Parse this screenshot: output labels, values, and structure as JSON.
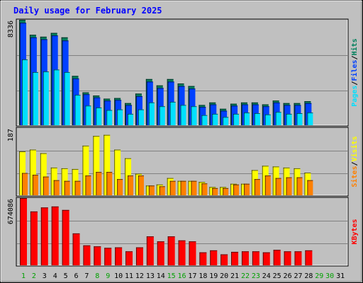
{
  "title": "Daily usage for February 2025",
  "colors": {
    "background": "#C0C0C0",
    "plot_background": "#C0C0C0",
    "title": "#0000FF",
    "hits": "#00805C",
    "files": "#0040FF",
    "pages": "#00E0FF",
    "visits": "#FFFF00",
    "sites": "#FF8000",
    "kbytes": "#FF0000",
    "day_weekday": "#008040",
    "day_weekend": "#00A000"
  },
  "chart_data": [
    {
      "type": "bar",
      "panel": "hits-files-pages",
      "ymax_label": "8336",
      "ylim": [
        0,
        8336
      ],
      "legend": [
        "Pages",
        "Files",
        "Hits"
      ],
      "series": [
        {
          "name": "Hits",
          "values": [
            8336,
            7150,
            7000,
            7300,
            6950,
            3900,
            2600,
            2350,
            2100,
            2150,
            1750,
            2500,
            3650,
            3150,
            3650,
            3300,
            3100,
            1600,
            1800,
            1300,
            1700,
            1800,
            1800,
            1650,
            1950,
            1750,
            1750,
            1900
          ]
        },
        {
          "name": "Files",
          "values": [
            8100,
            6950,
            6800,
            7100,
            6700,
            3700,
            2450,
            2200,
            1950,
            2000,
            1600,
            2300,
            3450,
            2950,
            3450,
            3100,
            2900,
            1450,
            1650,
            1150,
            1550,
            1650,
            1650,
            1500,
            1800,
            1600,
            1600,
            1750
          ]
        },
        {
          "name": "Pages",
          "values": [
            5200,
            4200,
            4250,
            4400,
            4200,
            2400,
            1550,
            1400,
            1200,
            1250,
            900,
            1250,
            1800,
            1500,
            1850,
            1600,
            1500,
            800,
            900,
            650,
            900,
            1000,
            950,
            850,
            1050,
            900,
            950,
            1000
          ]
        }
      ]
    },
    {
      "type": "bar",
      "panel": "visits-sites",
      "ymax_label": "187",
      "ylim": [
        0,
        187
      ],
      "legend": [
        "Sites",
        "Visits"
      ],
      "series": [
        {
          "name": "Visits",
          "values": [
            122,
            127,
            117,
            77,
            75,
            73,
            138,
            165,
            168,
            127,
            103,
            60,
            27,
            30,
            48,
            40,
            40,
            37,
            23,
            23,
            32,
            32,
            70,
            82,
            80,
            77,
            75,
            63
          ]
        },
        {
          "name": "Sites",
          "values": [
            62,
            57,
            52,
            42,
            40,
            40,
            55,
            65,
            65,
            45,
            55,
            55,
            27,
            25,
            40,
            40,
            40,
            33,
            20,
            20,
            30,
            32,
            45,
            55,
            48,
            50,
            50,
            42
          ]
        }
      ]
    },
    {
      "type": "bar",
      "panel": "kbytes",
      "ymax_label": "674086",
      "ylim": [
        0,
        674086
      ],
      "legend": [
        "KBytes"
      ],
      "series": [
        {
          "name": "KBytes",
          "values": [
            674086,
            540000,
            580000,
            590000,
            555000,
            320000,
            200000,
            190000,
            175000,
            180000,
            140000,
            180000,
            290000,
            240000,
            290000,
            250000,
            240000,
            130000,
            150000,
            110000,
            135000,
            140000,
            140000,
            130000,
            155000,
            140000,
            140000,
            150000
          ]
        }
      ]
    }
  ],
  "days": [
    "1",
    "2",
    "3",
    "4",
    "5",
    "6",
    "7",
    "8",
    "9",
    "10",
    "11",
    "12",
    "13",
    "14",
    "15",
    "16",
    "17",
    "18",
    "19",
    "20",
    "21",
    "22",
    "23",
    "24",
    "25",
    "26",
    "27",
    "28",
    "29",
    "30",
    "31"
  ],
  "weekend_days": [
    1,
    2,
    8,
    9,
    15,
    16,
    22,
    23,
    29,
    30
  ],
  "data_days": 28
}
